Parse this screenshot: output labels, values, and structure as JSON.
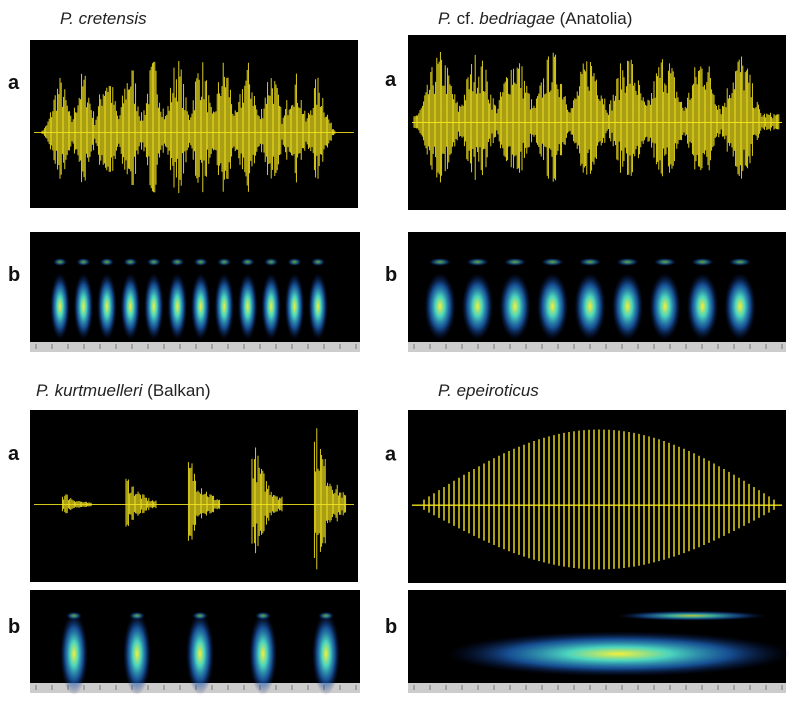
{
  "panels": [
    {
      "title": [
        {
          "text": "P. cretensis",
          "italic": true
        }
      ],
      "labels": [
        "a",
        "b"
      ]
    },
    {
      "title": [
        {
          "text": "P.",
          "italic": true
        },
        {
          "text": " cf. ",
          "italic": false
        },
        {
          "text": "bedriagae",
          "italic": true
        },
        {
          "text": " (Anatolia)",
          "italic": false
        }
      ],
      "labels": [
        "a",
        "b"
      ]
    },
    {
      "title": [
        {
          "text": "P. kurtmuelleri",
          "italic": true
        },
        {
          "text": " (Balkan)",
          "italic": false
        }
      ],
      "labels": [
        "a",
        "b"
      ]
    },
    {
      "title": [
        {
          "text": "P. epeiroticus",
          "italic": true
        }
      ],
      "labels": [
        "a",
        "b"
      ]
    }
  ]
}
